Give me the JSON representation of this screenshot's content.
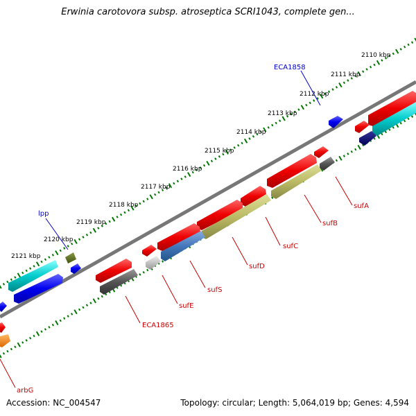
{
  "title": "Erwinia carotovora subsp. atroseptica SCRI1043, complete gen...",
  "footer": {
    "accession": "Accession: NC_004547",
    "stats": "Topology: circular; Length: 5,064,019 bp; Genes: 4,594"
  },
  "ticks": [
    "2110 kbp",
    "2111 kbp",
    "2112 kbp",
    "2113 kbp",
    "2114 kbp",
    "2115 kbp",
    "2116 kbp",
    "2117 kbp",
    "2118 kbp",
    "2119 kbp",
    "2120 kbp",
    "2121 kbp"
  ],
  "labels": [
    {
      "text": "ECA1858",
      "color": "#0000cc"
    },
    {
      "text": "lpp",
      "color": "#0000cc"
    },
    {
      "text": "sufA",
      "color": "#cc0000"
    },
    {
      "text": "sufB",
      "color": "#cc0000"
    },
    {
      "text": "sufC",
      "color": "#cc0000"
    },
    {
      "text": "sufD",
      "color": "#cc0000"
    },
    {
      "text": "sufS",
      "color": "#cc0000"
    },
    {
      "text": "sufE",
      "color": "#cc0000"
    },
    {
      "text": "ECA1865",
      "color": "#cc0000"
    },
    {
      "text": "arbG",
      "color": "#cc0000"
    }
  ],
  "colors": {
    "red": "#ee0000",
    "cyan": "#00cccc",
    "blue": "#0000ee",
    "navy": "#000077",
    "olive": "#bbbb66",
    "steel": "#4477bb",
    "gray": "#555555",
    "lightgray": "#bbbbbb",
    "green": "#556b2f",
    "orange": "#ff8800",
    "backbone": "#777777",
    "tick_green": "#007700"
  }
}
